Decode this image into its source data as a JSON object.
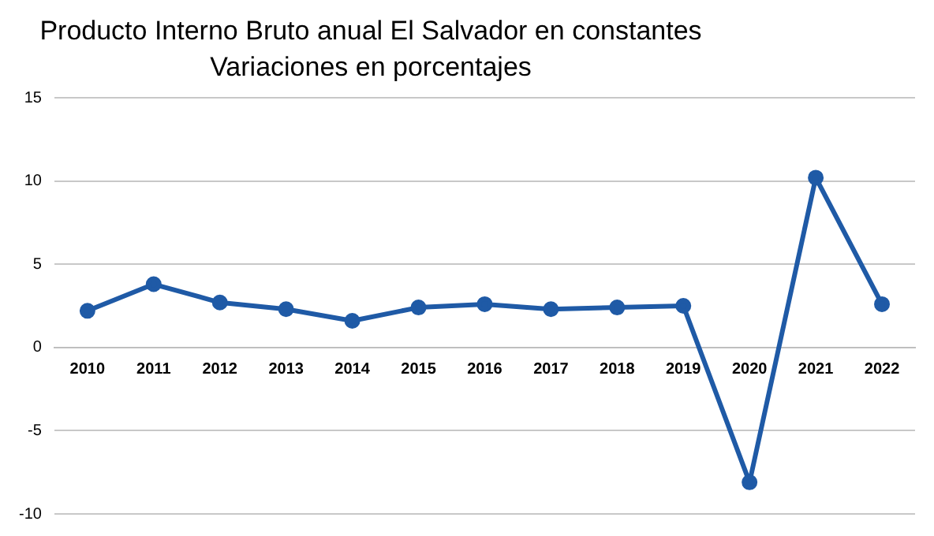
{
  "chart_data": {
    "type": "line",
    "title": "Producto Interno Bruto anual El Salvador en constantes",
    "subtitle": "Variaciones en porcentajes",
    "categories": [
      "2010",
      "2011",
      "2012",
      "2013",
      "2014",
      "2015",
      "2016",
      "2017",
      "2018",
      "2019",
      "2020",
      "2021",
      "2022"
    ],
    "series": [
      {
        "color": "#1f5aa6",
        "values": [
          2.2,
          3.8,
          2.7,
          2.3,
          1.6,
          2.4,
          2.6,
          2.3,
          2.4,
          2.5,
          -8.1,
          10.2,
          2.6
        ]
      }
    ],
    "ylim": [
      -10,
      15
    ],
    "yticks": [
      -10,
      -5,
      0,
      5,
      10,
      15
    ],
    "grid": "y",
    "legend": false,
    "marker": "circle",
    "line_style": "solid"
  }
}
